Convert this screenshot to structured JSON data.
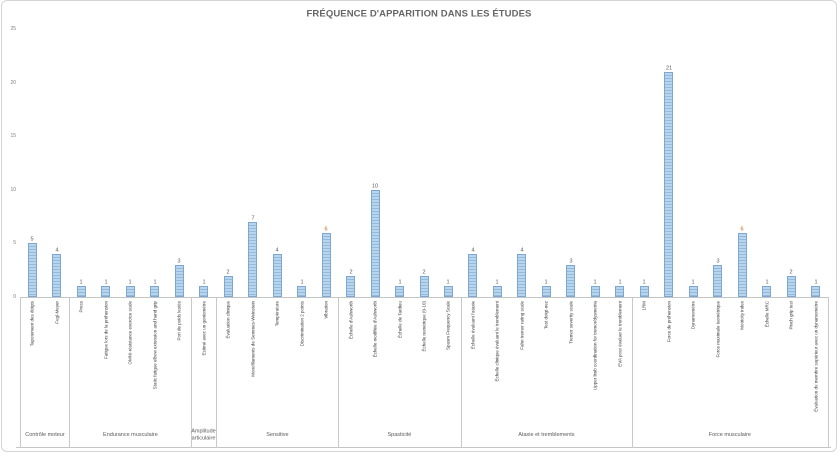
{
  "chart_data": {
    "type": "bar",
    "title": "FRÉQUENCE D'APPARITION DANS LES ÉTUDES",
    "ylabel": "",
    "xlabel": "",
    "ylim": [
      0,
      25
    ],
    "y_ticks": [
      0,
      5,
      10,
      15,
      20,
      25
    ],
    "grid": false,
    "legend": false,
    "bar_color": "#9DC3E6",
    "value_label_color": "#595959",
    "highlight_value_color": "#C55A11",
    "groups": [
      {
        "label": "Contrôle moteur",
        "items": [
          {
            "label": "Tapotement des doigts",
            "value": 5
          },
          {
            "label": "Fugl-Meyer",
            "value": 4
          }
        ]
      },
      {
        "label": "Endurance musculaire",
        "items": [
          {
            "label": "Press",
            "value": 1
          },
          {
            "label": "Fatigue lors de la préhension",
            "value": 1
          },
          {
            "label": "OMNI-résistance exercice scale",
            "value": 1
          },
          {
            "label": "Static fatigue elbow extension and hand grip",
            "value": 1
          },
          {
            "label": "Port de poids lestés",
            "value": 3
          }
        ]
      },
      {
        "label": "Amplitude articulaire",
        "items": [
          {
            "label": "Estimé avec un goniomètre",
            "value": 1
          }
        ]
      },
      {
        "label": "Sensitive",
        "items": [
          {
            "label": "Évaluation clinique",
            "value": 2
          },
          {
            "label": "Monofilaments de Semmes-Weinstein",
            "value": 7
          },
          {
            "label": "Température",
            "value": 4
          },
          {
            "label": "Discrimination 2 points",
            "value": 1
          },
          {
            "label": "Vibration",
            "value": 6,
            "value_color": "#C55A11"
          }
        ]
      },
      {
        "label": "Spasticité",
        "items": [
          {
            "label": "Échelle d'Ashworth",
            "value": 2
          },
          {
            "label": "Échelle modifiée d'Ashworth",
            "value": 10
          },
          {
            "label": "Échelle de Tardieu",
            "value": 1
          },
          {
            "label": "Échelle numérique (0-10)",
            "value": 2
          },
          {
            "label": "Spasm Frequency Scale",
            "value": 1
          }
        ]
      },
      {
        "label": "Ataxie et tremblements",
        "items": [
          {
            "label": "Échelle évaluant l'ataxie",
            "value": 4
          },
          {
            "label": "Échelle clinique évaluant le tremblement",
            "value": 1
          },
          {
            "label": "Fahn tremor rating scale",
            "value": 4
          },
          {
            "label": "Test doigt-nez",
            "value": 1
          },
          {
            "label": "Tremor severity scale",
            "value": 3
          },
          {
            "label": "Upper limb coordination for tremor/dysmetria",
            "value": 1
          },
          {
            "label": "EVA pour évaluer le tremblement",
            "value": 1
          }
        ]
      },
      {
        "label": "Force musculaire",
        "items": [
          {
            "label": "1RM",
            "value": 1
          },
          {
            "label": "Force de préhension",
            "value": 21
          },
          {
            "label": "Dynamomètre",
            "value": 1
          },
          {
            "label": "Force maximale isométrique",
            "value": 3
          },
          {
            "label": "Motricity index",
            "value": 6,
            "value_color": "#C55A11"
          },
          {
            "label": "Échelle MRC",
            "value": 1
          },
          {
            "label": "Pinch grip test",
            "value": 2
          },
          {
            "label": "Évaluation du membre supérieur avec un dynamomètre",
            "value": 1
          }
        ]
      }
    ]
  }
}
